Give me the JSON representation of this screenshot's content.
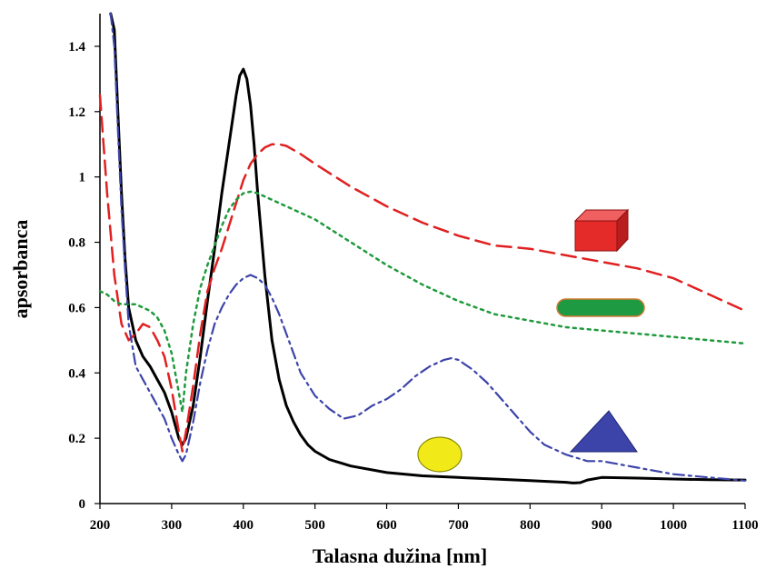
{
  "chart_data": {
    "type": "line",
    "title": "",
    "xlabel": "Talasna dužina [nm]",
    "ylabel": "apsorbanca",
    "xlim": [
      200,
      1100
    ],
    "ylim": [
      0,
      1.5
    ],
    "grid": false,
    "legend": "none",
    "x_ticks": [
      200,
      300,
      400,
      500,
      600,
      700,
      800,
      900,
      1000,
      1100
    ],
    "x_tick_labels": [
      "200",
      "300",
      "400",
      "500",
      "600",
      "700",
      "800",
      "900",
      "1000",
      "1100"
    ],
    "y_ticks": [
      0,
      0.2,
      0.4,
      0.6,
      0.8,
      1,
      1.2,
      1.4
    ],
    "y_tick_labels": [
      "0",
      "0.2",
      "0.4",
      "0.6",
      "0.8",
      "1",
      "1.2",
      "1.4"
    ],
    "series": [
      {
        "marker_shape": "circle",
        "color": "#000000",
        "style": "solid",
        "x": [
          215,
          220,
          225,
          230,
          235,
          240,
          250,
          260,
          270,
          280,
          290,
          300,
          310,
          315,
          320,
          330,
          340,
          350,
          360,
          370,
          380,
          390,
          395,
          400,
          405,
          410,
          415,
          420,
          430,
          440,
          450,
          460,
          470,
          480,
          490,
          500,
          520,
          550,
          600,
          650,
          700,
          750,
          800,
          850,
          860,
          870,
          880,
          900,
          950,
          1000,
          1050,
          1100
        ],
        "y": [
          1.5,
          1.45,
          1.2,
          0.95,
          0.75,
          0.6,
          0.5,
          0.45,
          0.42,
          0.38,
          0.34,
          0.28,
          0.2,
          0.18,
          0.2,
          0.3,
          0.45,
          0.62,
          0.78,
          0.95,
          1.1,
          1.25,
          1.31,
          1.33,
          1.3,
          1.22,
          1.1,
          0.95,
          0.7,
          0.5,
          0.38,
          0.3,
          0.25,
          0.21,
          0.18,
          0.16,
          0.135,
          0.115,
          0.095,
          0.085,
          0.08,
          0.075,
          0.07,
          0.065,
          0.063,
          0.064,
          0.072,
          0.08,
          0.078,
          0.075,
          0.073,
          0.072
        ]
      },
      {
        "marker_shape": "cube",
        "color": "#e02020",
        "style": "dashed",
        "x": [
          200,
          210,
          220,
          230,
          240,
          250,
          260,
          270,
          280,
          290,
          300,
          310,
          315,
          320,
          330,
          340,
          350,
          360,
          370,
          380,
          390,
          400,
          410,
          420,
          430,
          440,
          450,
          460,
          480,
          500,
          550,
          600,
          650,
          700,
          750,
          800,
          850,
          900,
          950,
          1000,
          1050,
          1100
        ],
        "y": [
          1.25,
          0.95,
          0.7,
          0.55,
          0.5,
          0.52,
          0.55,
          0.54,
          0.5,
          0.45,
          0.35,
          0.22,
          0.16,
          0.22,
          0.36,
          0.52,
          0.65,
          0.72,
          0.78,
          0.85,
          0.92,
          0.99,
          1.04,
          1.07,
          1.09,
          1.1,
          1.1,
          1.095,
          1.07,
          1.04,
          0.97,
          0.91,
          0.86,
          0.82,
          0.79,
          0.78,
          0.76,
          0.74,
          0.72,
          0.69,
          0.64,
          0.59
        ]
      },
      {
        "marker_shape": "rod",
        "color": "#1f9a3c",
        "style": "dotted",
        "x": [
          200,
          210,
          220,
          230,
          240,
          250,
          260,
          270,
          280,
          290,
          300,
          310,
          315,
          320,
          330,
          340,
          350,
          360,
          370,
          380,
          390,
          400,
          410,
          420,
          430,
          450,
          500,
          550,
          600,
          650,
          700,
          750,
          800,
          850,
          900,
          950,
          1000,
          1050,
          1100
        ],
        "y": [
          0.65,
          0.64,
          0.62,
          0.61,
          0.61,
          0.61,
          0.6,
          0.59,
          0.57,
          0.53,
          0.46,
          0.34,
          0.28,
          0.4,
          0.55,
          0.66,
          0.73,
          0.79,
          0.85,
          0.9,
          0.93,
          0.95,
          0.955,
          0.95,
          0.94,
          0.92,
          0.87,
          0.8,
          0.73,
          0.67,
          0.62,
          0.58,
          0.56,
          0.54,
          0.53,
          0.52,
          0.51,
          0.5,
          0.49
        ]
      },
      {
        "marker_shape": "triangle",
        "color": "#3c44aa",
        "style": "dash-dot",
        "x": [
          215,
          220,
          225,
          230,
          235,
          240,
          250,
          260,
          270,
          280,
          290,
          300,
          310,
          315,
          320,
          330,
          340,
          350,
          360,
          370,
          380,
          390,
          400,
          410,
          420,
          430,
          440,
          450,
          460,
          470,
          480,
          500,
          520,
          540,
          560,
          580,
          600,
          620,
          640,
          660,
          680,
          690,
          700,
          720,
          740,
          760,
          780,
          800,
          820,
          850,
          880,
          900,
          950,
          1000,
          1050,
          1100
        ],
        "y": [
          1.5,
          1.4,
          1.15,
          0.9,
          0.72,
          0.55,
          0.42,
          0.38,
          0.34,
          0.3,
          0.26,
          0.2,
          0.15,
          0.13,
          0.15,
          0.25,
          0.37,
          0.47,
          0.55,
          0.6,
          0.64,
          0.67,
          0.69,
          0.7,
          0.69,
          0.67,
          0.63,
          0.58,
          0.52,
          0.46,
          0.4,
          0.33,
          0.29,
          0.26,
          0.27,
          0.3,
          0.32,
          0.35,
          0.39,
          0.42,
          0.44,
          0.445,
          0.44,
          0.41,
          0.37,
          0.32,
          0.27,
          0.22,
          0.18,
          0.15,
          0.13,
          0.13,
          0.11,
          0.09,
          0.08,
          0.07
        ]
      }
    ]
  },
  "legend_colors": {
    "sphere": "#f2ea18",
    "sphere_stroke": "#8a8a00",
    "cube_front": "#e52a2a",
    "cube_top": "#f06060",
    "cube_side": "#b81e1e",
    "rod": "#1e9a42",
    "rod_stroke": "#d07a30",
    "triangle": "#3c44aa"
  }
}
